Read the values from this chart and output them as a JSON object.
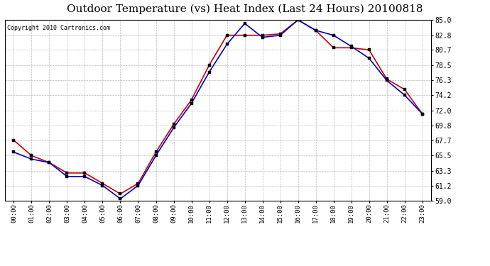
{
  "title": "Outdoor Temperature (vs) Heat Index (Last 24 Hours) 20100818",
  "copyright": "Copyright 2010 Cartronics.com",
  "x_labels": [
    "00:00",
    "01:00",
    "02:00",
    "03:00",
    "04:00",
    "05:00",
    "06:00",
    "07:00",
    "08:00",
    "09:00",
    "10:00",
    "11:00",
    "12:00",
    "13:00",
    "14:00",
    "15:00",
    "16:00",
    "17:00",
    "18:00",
    "19:00",
    "20:00",
    "21:00",
    "22:00",
    "23:00"
  ],
  "temp": [
    66.0,
    65.0,
    64.5,
    62.5,
    62.5,
    61.2,
    59.3,
    61.2,
    65.5,
    69.5,
    73.0,
    77.5,
    81.5,
    84.5,
    82.5,
    82.8,
    85.0,
    83.5,
    82.8,
    81.2,
    79.5,
    76.3,
    74.2,
    71.5
  ],
  "heat_index": [
    67.7,
    65.5,
    64.5,
    63.0,
    63.0,
    61.5,
    60.0,
    61.5,
    66.0,
    70.0,
    73.5,
    78.5,
    82.8,
    82.8,
    82.8,
    83.0,
    85.0,
    83.5,
    81.0,
    81.0,
    80.7,
    76.5,
    75.0,
    71.5
  ],
  "temp_color": "#0000cc",
  "heat_index_color": "#cc0000",
  "ylim": [
    59.0,
    85.0
  ],
  "yticks": [
    59.0,
    61.2,
    63.3,
    65.5,
    67.7,
    69.8,
    72.0,
    74.2,
    76.3,
    78.5,
    80.7,
    82.8,
    85.0
  ],
  "background_color": "#ffffff",
  "grid_color": "#aaaaaa",
  "title_fontsize": 11,
  "copyright_fontsize": 6,
  "marker_size": 3,
  "line_width": 1.2
}
